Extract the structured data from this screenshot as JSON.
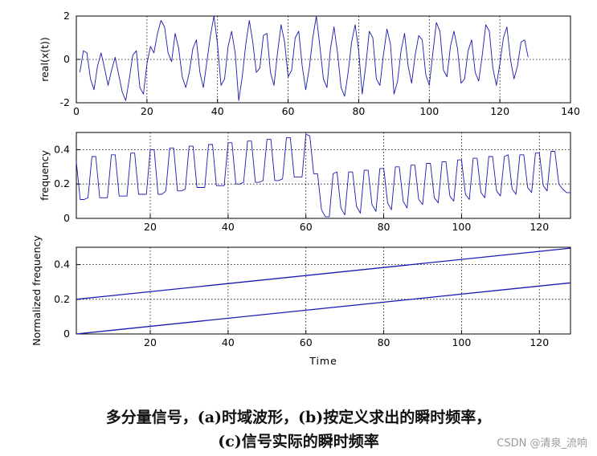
{
  "chart_data": [
    {
      "type": "line",
      "ylabel": "real(x(t))",
      "xlabel": "",
      "xlim": [
        0,
        140
      ],
      "ylim": [
        -2,
        2
      ],
      "xticks": [
        0,
        20,
        40,
        60,
        80,
        100,
        120,
        140
      ],
      "yticks": [
        -2,
        0,
        2
      ],
      "grid": true,
      "series": [
        {
          "color": "#1a1ab0",
          "x": [
            1,
            2,
            3,
            4,
            5,
            6,
            7,
            8,
            9,
            10,
            11,
            12,
            13,
            14,
            15,
            16,
            17,
            18,
            19,
            20,
            21,
            22,
            23,
            24,
            25,
            26,
            27,
            28,
            29,
            30,
            31,
            32,
            33,
            34,
            35,
            36,
            37,
            38,
            39,
            40,
            41,
            42,
            43,
            44,
            45,
            46,
            47,
            48,
            49,
            50,
            51,
            52,
            53,
            54,
            55,
            56,
            57,
            58,
            59,
            60,
            61,
            62,
            63,
            64,
            65,
            66,
            67,
            68,
            69,
            70,
            71,
            72,
            73,
            74,
            75,
            76,
            77,
            78,
            79,
            80,
            81,
            82,
            83,
            84,
            85,
            86,
            87,
            88,
            89,
            90,
            91,
            92,
            93,
            94,
            95,
            96,
            97,
            98,
            99,
            100,
            101,
            102,
            103,
            104,
            105,
            106,
            107,
            108,
            109,
            110,
            111,
            112,
            113,
            114,
            115,
            116,
            117,
            118,
            119,
            120,
            121,
            122,
            123,
            124,
            125,
            126,
            127,
            128
          ],
          "y": [
            -0.6,
            0.4,
            0.3,
            -0.9,
            -1.4,
            -0.3,
            0.3,
            -0.4,
            -1.2,
            -0.5,
            0.1,
            -0.7,
            -1.5,
            -1.9,
            -0.9,
            0.2,
            0.4,
            -1.3,
            -1.6,
            -0.2,
            0.6,
            0.3,
            1.2,
            1.8,
            1.5,
            0.3,
            -0.1,
            1.2,
            0.5,
            -0.8,
            -1.3,
            -0.6,
            0.5,
            0.9,
            -0.6,
            -1.3,
            -0.1,
            1.1,
            2.0,
            0.7,
            -1.2,
            -0.9,
            0.6,
            1.3,
            0.3,
            -1.9,
            -0.8,
            0.7,
            1.8,
            0.8,
            -0.6,
            -0.4,
            1.1,
            1.2,
            -0.6,
            -1.2,
            0.3,
            1.6,
            0.8,
            -0.8,
            -0.5,
            1.0,
            1.3,
            -0.3,
            -1.4,
            -0.4,
            1.0,
            2.0,
            0.6,
            -0.9,
            -1.3,
            0.5,
            1.5,
            0.3,
            -1.3,
            -1.7,
            -0.6,
            0.8,
            1.6,
            0.4,
            -1.6,
            -0.3,
            1.3,
            1.0,
            -0.9,
            -1.2,
            0.2,
            1.4,
            0.7,
            -1.6,
            -1.0,
            0.4,
            1.2,
            -0.3,
            -1.1,
            0.2,
            1.1,
            0.9,
            -0.7,
            -1.2,
            0.3,
            1.7,
            1.3,
            -0.5,
            -0.8,
            0.6,
            1.3,
            0.5,
            -1.1,
            -0.9,
            0.4,
            0.9,
            -0.6,
            -1.0,
            0.2,
            1.6,
            1.3,
            -0.4,
            -1.2,
            -0.2,
            1.0,
            1.5,
            0.0,
            -0.9,
            -0.3,
            0.8,
            0.9,
            0.1
          ]
        }
      ]
    },
    {
      "type": "line",
      "ylabel": "frequency",
      "xlabel": "",
      "xlim": [
        1,
        128
      ],
      "ylim": [
        0,
        0.5
      ],
      "xticks": [
        20,
        40,
        60,
        80,
        100,
        120
      ],
      "yticks": [
        0,
        0.2,
        0.4
      ],
      "grid": true,
      "series": [
        {
          "color": "#1a1ab0",
          "x": [
            1,
            2,
            3,
            4,
            5,
            6,
            7,
            8,
            9,
            10,
            11,
            12,
            13,
            14,
            15,
            16,
            17,
            18,
            19,
            20,
            21,
            22,
            23,
            24,
            25,
            26,
            27,
            28,
            29,
            30,
            31,
            32,
            33,
            34,
            35,
            36,
            37,
            38,
            39,
            40,
            41,
            42,
            43,
            44,
            45,
            46,
            47,
            48,
            49,
            50,
            51,
            52,
            53,
            54,
            55,
            56,
            57,
            58,
            59,
            60,
            61,
            62,
            63,
            64,
            65,
            66,
            67,
            68,
            69,
            70,
            71,
            72,
            73,
            74,
            75,
            76,
            77,
            78,
            79,
            80,
            81,
            82,
            83,
            84,
            85,
            86,
            87,
            88,
            89,
            90,
            91,
            92,
            93,
            94,
            95,
            96,
            97,
            98,
            99,
            100,
            101,
            102,
            103,
            104,
            105,
            106,
            107,
            108,
            109,
            110,
            111,
            112,
            113,
            114,
            115,
            116,
            117,
            118,
            119,
            120,
            121,
            122,
            123,
            124,
            125,
            126,
            127,
            128
          ],
          "y": [
            0.33,
            0.11,
            0.11,
            0.12,
            0.36,
            0.36,
            0.12,
            0.12,
            0.12,
            0.37,
            0.37,
            0.13,
            0.13,
            0.13,
            0.38,
            0.38,
            0.14,
            0.14,
            0.14,
            0.4,
            0.4,
            0.14,
            0.14,
            0.16,
            0.41,
            0.41,
            0.16,
            0.16,
            0.17,
            0.42,
            0.42,
            0.18,
            0.18,
            0.18,
            0.43,
            0.43,
            0.19,
            0.19,
            0.19,
            0.44,
            0.44,
            0.2,
            0.2,
            0.21,
            0.45,
            0.45,
            0.21,
            0.21,
            0.22,
            0.46,
            0.46,
            0.22,
            0.22,
            0.23,
            0.47,
            0.47,
            0.24,
            0.24,
            0.24,
            0.49,
            0.48,
            0.26,
            0.26,
            0.05,
            0.01,
            0.01,
            0.26,
            0.27,
            0.06,
            0.02,
            0.27,
            0.27,
            0.07,
            0.03,
            0.28,
            0.28,
            0.08,
            0.04,
            0.29,
            0.29,
            0.09,
            0.05,
            0.3,
            0.3,
            0.1,
            0.06,
            0.31,
            0.31,
            0.11,
            0.08,
            0.32,
            0.32,
            0.12,
            0.09,
            0.33,
            0.33,
            0.13,
            0.1,
            0.34,
            0.34,
            0.14,
            0.11,
            0.35,
            0.35,
            0.15,
            0.12,
            0.36,
            0.36,
            0.16,
            0.13,
            0.36,
            0.37,
            0.17,
            0.14,
            0.37,
            0.37,
            0.18,
            0.15,
            0.38,
            0.38,
            0.19,
            0.16,
            0.39,
            0.39,
            0.2,
            0.17,
            0.15,
            0.15
          ]
        }
      ]
    },
    {
      "type": "line",
      "ylabel": "Normalized frequency",
      "xlabel": "Time",
      "xlim": [
        1,
        128
      ],
      "ylim": [
        0,
        0.5
      ],
      "xticks": [
        20,
        40,
        60,
        80,
        100,
        120
      ],
      "yticks": [
        0,
        0.2,
        0.4
      ],
      "grid": true,
      "series": [
        {
          "color": "#1a1ab0",
          "x": [
            1,
            128
          ],
          "y": [
            0.2,
            0.495
          ]
        },
        {
          "color": "#1a1ab0",
          "x": [
            1,
            128
          ],
          "y": [
            0.0,
            0.295
          ]
        }
      ]
    }
  ],
  "caption": {
    "line1": "多分量信号，(a)时域波形，(b)按定义求出的瞬时频率，",
    "line2": "(c)信号实际的瞬时频率"
  },
  "watermark": "CSDN @清泉_流响"
}
